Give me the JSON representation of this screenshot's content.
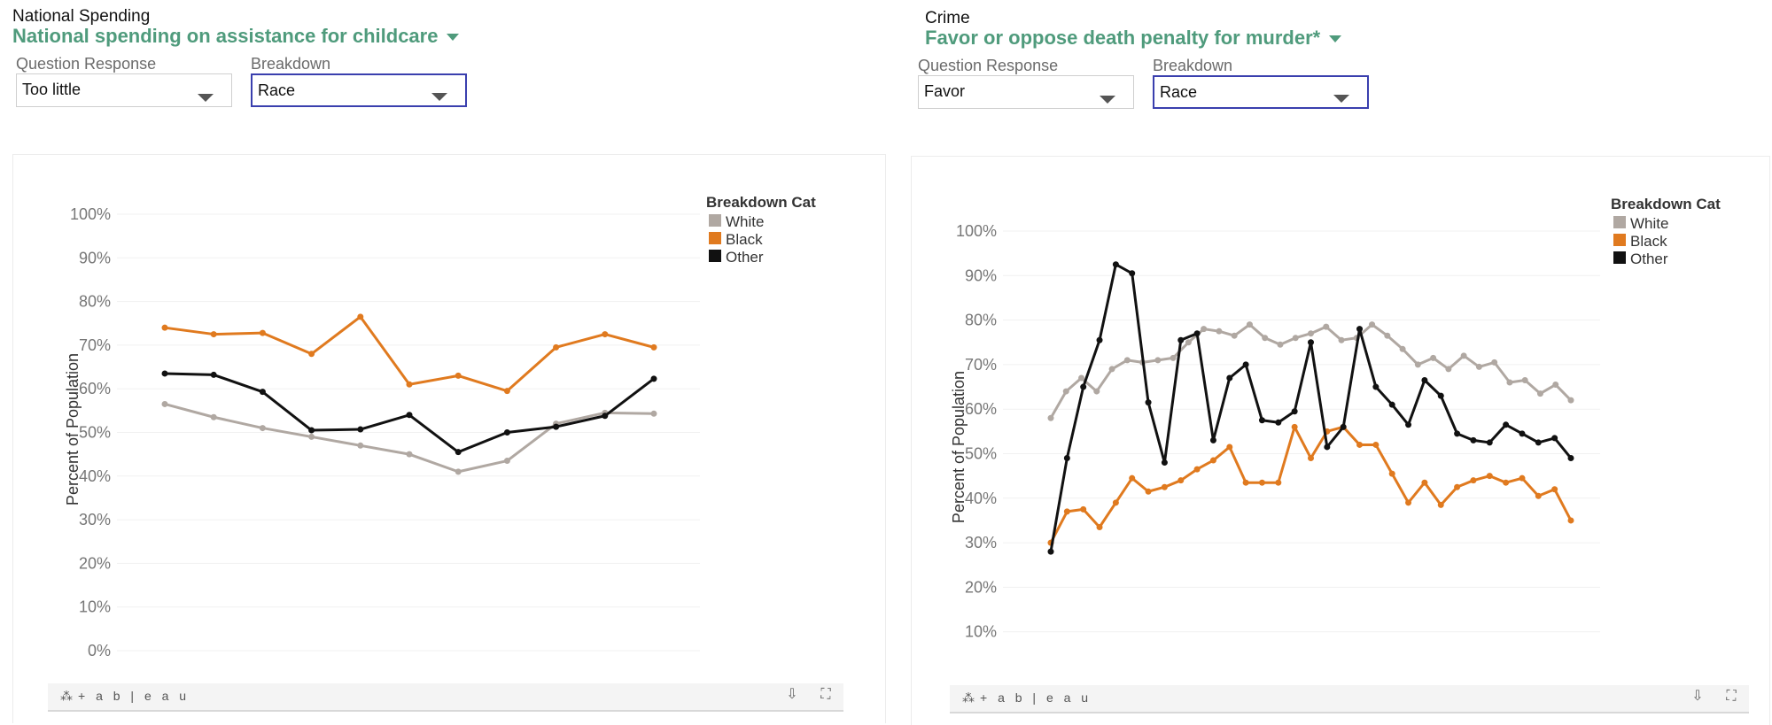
{
  "panels": [
    {
      "category": "National Spending",
      "title": "National spending on assistance for childcare",
      "filters": {
        "question_response": {
          "label": "Question Response",
          "value": "Too little"
        },
        "breakdown": {
          "label": "Breakdown",
          "value": "Race"
        }
      },
      "toolbar": {
        "logo": "+ a b | e a u",
        "icons": [
          "share-icon",
          "fullscreen-icon"
        ]
      }
    },
    {
      "category": "Crime",
      "title": "Favor or oppose death penalty for murder*",
      "filters": {
        "question_response": {
          "label": "Question Response",
          "value": "Favor"
        },
        "breakdown": {
          "label": "Breakdown",
          "value": "Race"
        }
      },
      "toolbar": {
        "logo": "+ a b | e a u",
        "icons": [
          "share-icon",
          "fullscreen-icon"
        ]
      }
    }
  ],
  "chart_data": [
    {
      "type": "line",
      "ylabel": "Percent of Population",
      "ylim": [
        0,
        100
      ],
      "yticks": [
        "0%",
        "10%",
        "20%",
        "30%",
        "40%",
        "50%",
        "60%",
        "70%",
        "80%",
        "90%",
        "100%"
      ],
      "legend": {
        "title": "Breakdown Cat",
        "position": "top-right"
      },
      "colors": {
        "White": "#b0a8a2",
        "Black": "#e07a1f",
        "Other": "#111111"
      },
      "series": [
        {
          "name": "White",
          "values": [
            56.5,
            53.5,
            51,
            49,
            47,
            45,
            41,
            43.5,
            52,
            54.5,
            54.3
          ]
        },
        {
          "name": "Black",
          "values": [
            74,
            72.5,
            72.8,
            68,
            76.5,
            61,
            63,
            59.5,
            69.5,
            72.5,
            69.5
          ]
        },
        {
          "name": "Other",
          "values": [
            63.5,
            63.2,
            59.3,
            50.5,
            50.7,
            54,
            45.5,
            50,
            51.3,
            53.8,
            62.3
          ]
        }
      ]
    },
    {
      "type": "line",
      "ylabel": "Percent of Population",
      "ylim": [
        0,
        100
      ],
      "yticks": [
        "10%",
        "20%",
        "30%",
        "40%",
        "50%",
        "60%",
        "70%",
        "80%",
        "90%",
        "100%"
      ],
      "legend": {
        "title": "Breakdown Cat",
        "position": "top-right"
      },
      "colors": {
        "White": "#b0a8a2",
        "Black": "#e07a1f",
        "Other": "#111111"
      },
      "series": [
        {
          "name": "White",
          "values": [
            58,
            64,
            67,
            64,
            69,
            71,
            70.5,
            71,
            71.5,
            75,
            78,
            77.5,
            76.5,
            79,
            76,
            74.5,
            76,
            77,
            78.5,
            75.5,
            76,
            79,
            76.5,
            73.5,
            70,
            71.5,
            69,
            72,
            69.5,
            70.5,
            66,
            66.5,
            63.5,
            65.5,
            62
          ]
        },
        {
          "name": "Black",
          "values": [
            30,
            37,
            37.5,
            33.5,
            39,
            44.5,
            41.5,
            42.5,
            44,
            46.5,
            48.5,
            51.5,
            43.5,
            43.5,
            43.5,
            56,
            49,
            55,
            56,
            52,
            52,
            45.5,
            39,
            43.5,
            38.5,
            42.5,
            44,
            45,
            43.5,
            44.5,
            40.5,
            42,
            35
          ]
        },
        {
          "name": "Other",
          "values": [
            28,
            49,
            65,
            75.5,
            92.5,
            90.5,
            61.5,
            48,
            75.5,
            77,
            53,
            67,
            70,
            57.5,
            57,
            59.5,
            75,
            51.5,
            56,
            78,
            65,
            61,
            56.5,
            66.5,
            63,
            54.5,
            53,
            52.5,
            56.5,
            54.5,
            52.5,
            53.5,
            49
          ]
        }
      ]
    }
  ]
}
